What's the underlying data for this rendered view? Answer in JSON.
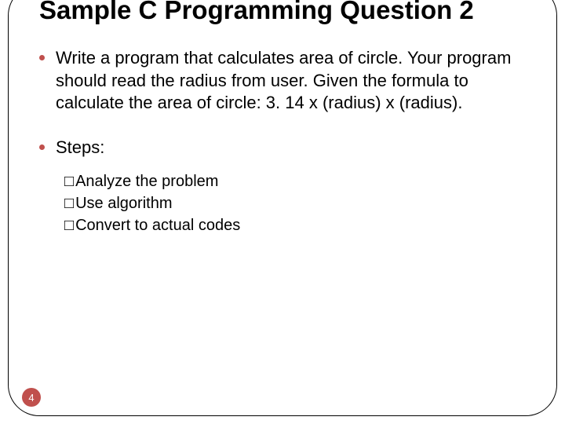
{
  "title": "Sample C Programming Question 2",
  "bullets": [
    {
      "text": "Write a program that calculates area of circle. Your program should read the radius from user. Given the formula to calculate the area of circle: 3. 14 x (radius) x (radius)."
    },
    {
      "text": "Steps:"
    }
  ],
  "sub_items": [
    "Analyze the problem",
    "Use algorithm",
    "Convert to actual codes"
  ],
  "page_number": "4",
  "colors": {
    "bullet": "#c0504d",
    "page_badge": "#c0504d",
    "text": "#000000",
    "background": "#ffffff"
  },
  "checkbox_glyph": "□"
}
